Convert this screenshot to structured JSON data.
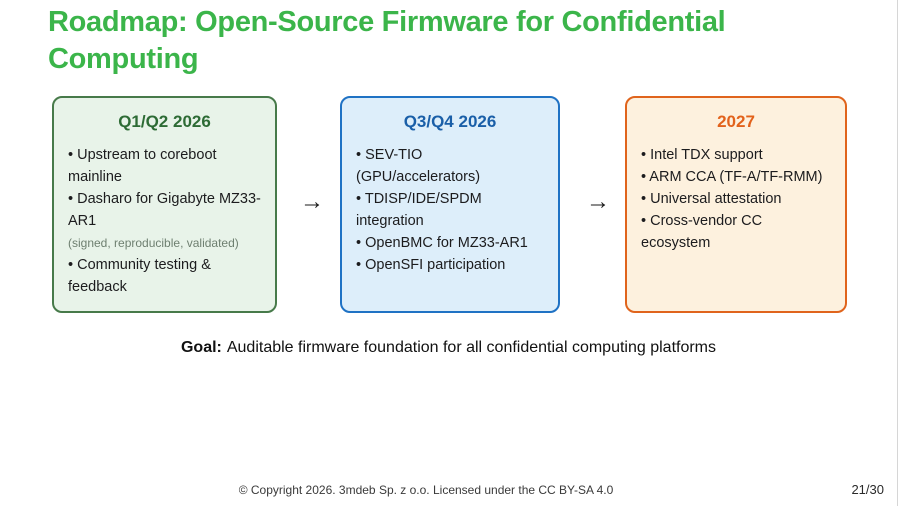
{
  "slide": {
    "title": "Roadmap: Open-Source Firmware for Confidential Computing",
    "title_color": "#3bb54a",
    "arrow_glyph": "→",
    "boxes": [
      {
        "title": "Q1/Q2 2026",
        "accent_color": "#2d6b35",
        "border_color": "#477a4a",
        "background_color": "#e8f3e9",
        "items": [
          {
            "type": "bullet",
            "text": "Upstream to coreboot mainline"
          },
          {
            "type": "bullet",
            "text": "Dasharo for Gigabyte MZ33-AR1"
          },
          {
            "type": "note",
            "text": "(signed, reproducible, validated)"
          },
          {
            "type": "bullet",
            "text": "Community testing & feedback"
          }
        ]
      },
      {
        "title": "Q3/Q4 2026",
        "accent_color": "#1a5fa8",
        "border_color": "#1f72c4",
        "background_color": "#ddeefa",
        "items": [
          {
            "type": "bullet",
            "text": "SEV-TIO (GPU/accelerators)"
          },
          {
            "type": "bullet",
            "text": "TDISP/IDE/SPDM integration"
          },
          {
            "type": "bullet",
            "text": "OpenBMC for MZ33-AR1"
          },
          {
            "type": "bullet",
            "text": "OpenSFI participation"
          }
        ]
      },
      {
        "title": "2027",
        "accent_color": "#e2621b",
        "border_color": "#e0641c",
        "background_color": "#fdf1de",
        "items": [
          {
            "type": "bullet",
            "text": "Intel TDX support"
          },
          {
            "type": "bullet",
            "text": "ARM CCA (TF-A/TF-RMM)"
          },
          {
            "type": "bullet",
            "text": "Universal attestation"
          },
          {
            "type": "bullet",
            "text": "Cross-vendor CC ecosystem"
          }
        ]
      }
    ],
    "goal": {
      "label": "Goal:",
      "text": "Auditable firmware foundation for all confidential computing platforms"
    },
    "footer": {
      "copyright": "© Copyright 2026. 3mdeb Sp. z o.o. Licensed under the CC BY-SA 4.0",
      "page": "21/30"
    }
  }
}
